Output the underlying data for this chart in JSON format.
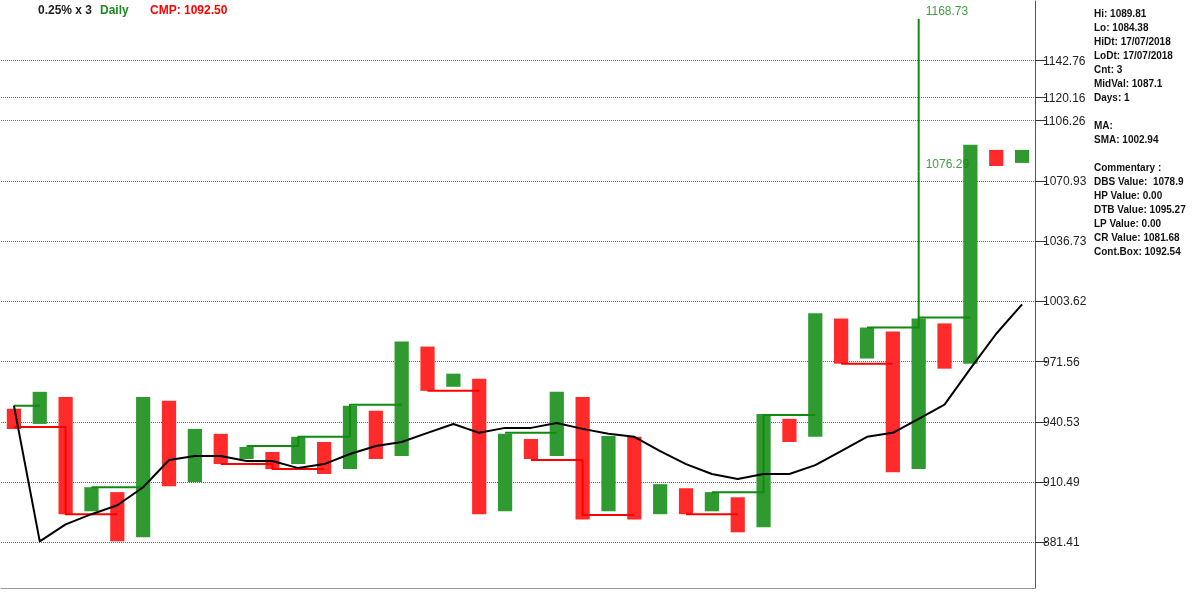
{
  "chart_data": {
    "type": "bar",
    "title": "0.25% x 3",
    "subtitle": "Daily",
    "marker": "none",
    "log": true,
    "grid": "y",
    "categories": [
      null,
      null,
      null,
      null,
      null,
      null,
      null,
      null,
      null,
      null,
      null,
      null,
      null,
      null,
      null,
      null,
      null,
      null,
      null,
      null,
      null,
      null,
      null,
      null,
      null,
      null,
      null,
      null,
      null,
      null,
      null,
      null,
      null,
      null,
      null,
      null,
      null,
      null,
      null,
      null
    ],
    "series": [
      {
        "base": [
          937.0,
          939.5,
          894.9,
          896.3,
          881.9,
          883.8,
          908.5,
          910.5,
          919.4,
          921.9,
          916.9,
          919.4,
          914.5,
          916.9,
          921.9,
          923.4,
          956.4,
          958.5,
          894.9,
          896.3,
          921.9,
          923.4,
          892.4,
          896.3,
          892.4,
          894.9,
          894.9,
          896.3,
          886.2,
          888.6,
          930.4,
          933.0,
          970.5,
          973.2,
          915.4,
          916.9,
          967.9,
          970.5,
          1079.6,
          1081.4
        ],
        "values": [
          10.2,
          16.4,
          58.4,
          11.7,
          23.7,
          69.5,
          42.8,
          26.5,
          15.1,
          6.0,
          8.5,
          13.6,
          15.9,
          31.9,
          24.3,
          58.8,
          23.1,
          6.8,
          67.8,
          38.2,
          10.0,
          32.5,
          60.9,
          37.1,
          40.6,
          14.6,
          12.6,
          9.3,
          16.9,
          56.0,
          11.7,
          64.2,
          23.9,
          16.4,
          72.1,
          77.5,
          23.9,
          121.5,
          9.4,
          7.6
        ],
        "colors": [
          "#ff2a2a",
          "#2f9a2f",
          "#ff2a2a",
          "#2f9a2f",
          "#ff2a2a",
          "#2f9a2f",
          "#ff2a2a",
          "#2f9a2f",
          "#ff2a2a",
          "#2f9a2f",
          "#ff2a2a",
          "#2f9a2f",
          "#ff2a2a",
          "#2f9a2f",
          "#ff2a2a",
          "#2f9a2f",
          "#ff2a2a",
          "#2f9a2f",
          "#ff2a2a",
          "#2f9a2f",
          "#ff2a2a",
          "#2f9a2f",
          "#ff2a2a",
          "#2f9a2f",
          "#ff2a2a",
          "#2f9a2f",
          "#ff2a2a",
          "#2f9a2f",
          "#ff2a2a",
          "#2f9a2f",
          "#ff2a2a",
          "#2f9a2f",
          "#ff2a2a",
          "#2f9a2f",
          "#ff2a2a",
          "#2f9a2f",
          "#ff2a2a",
          "#2f9a2f",
          "#ff2a2a",
          "#2f9a2f"
        ]
      },
      {
        "color": "#118a11",
        "base": [
          null,
          null,
          null,
          null,
          null,
          null,
          null,
          null,
          null,
          null,
          null,
          null,
          null,
          null,
          null,
          null,
          null,
          null,
          null,
          null,
          null,
          null,
          null,
          null,
          null,
          null,
          null,
          null,
          null,
          null,
          null,
          null,
          null,
          null,
          null,
          995.0,
          null,
          null,
          null,
          null
        ],
        "values": [
          null,
          null,
          null,
          null,
          null,
          null,
          null,
          null,
          null,
          null,
          null,
          null,
          null,
          null,
          null,
          null,
          null,
          null,
          null,
          null,
          null,
          null,
          null,
          null,
          null,
          null,
          null,
          null,
          null,
          null,
          null,
          null,
          null,
          null,
          null,
          81.29,
          null,
          null,
          null,
          null
        ]
      },
      {
        "color": "#118a11",
        "base": [
          null,
          null,
          null,
          null,
          null,
          null,
          null,
          null,
          null,
          null,
          null,
          null,
          null,
          null,
          null,
          null,
          null,
          null,
          null,
          null,
          null,
          null,
          null,
          null,
          null,
          null,
          null,
          null,
          null,
          null,
          null,
          null,
          null,
          null,
          null,
          1076.29,
          null,
          null,
          null,
          null
        ],
        "values": [
          null,
          null,
          null,
          null,
          null,
          null,
          null,
          null,
          null,
          null,
          null,
          null,
          null,
          null,
          null,
          null,
          null,
          null,
          null,
          null,
          null,
          null,
          null,
          null,
          null,
          null,
          null,
          null,
          null,
          null,
          null,
          null,
          null,
          null,
          null,
          92.44,
          null,
          null,
          null,
          null
        ]
      },
      {
        "type": "step",
        "color": "#118a11",
        "values": [
          948.8,
          948.8,
          null,
          908.0,
          908.0,
          908.0,
          null,
          null,
          null,
          928.4,
          928.4,
          933.0,
          933.0,
          949.3,
          949.3,
          949.3,
          null,
          null,
          null,
          935.0,
          935.0,
          935.0,
          null,
          null,
          null,
          null,
          null,
          905.6,
          905.6,
          944.0,
          944.0,
          944.0,
          null,
          989.6,
          989.6,
          995.0,
          995.0,
          995.0,
          null,
          null
        ]
      },
      {
        "type": "step",
        "color": "#ff0000",
        "values": [
          937.9,
          937.9,
          894.9,
          894.9,
          894.9,
          null,
          null,
          null,
          919.4,
          919.4,
          916.9,
          916.9,
          916.9,
          null,
          null,
          null,
          956.4,
          956.4,
          956.4,
          null,
          921.4,
          921.4,
          894.5,
          894.5,
          894.5,
          null,
          894.9,
          894.9,
          894.9,
          null,
          null,
          null,
          970.5,
          970.5,
          970.5,
          null,
          null,
          null,
          null,
          null
        ]
      },
      {
        "type": "line",
        "color": "#000000",
        "values": [
          948.8,
          881.9,
          890.0,
          894.9,
          899.2,
          908.0,
          921.4,
          923.4,
          923.4,
          920.9,
          920.9,
          917.4,
          919.4,
          924.4,
          928.4,
          930.4,
          935.0,
          939.5,
          935.0,
          937.5,
          937.5,
          940.0,
          937.0,
          934.5,
          933.0,
          925.8,
          919.4,
          914.5,
          912.0,
          914.5,
          914.5,
          918.9,
          925.8,
          933.0,
          935.0,
          942.1,
          949.3,
          967.9,
          986.3,
          1002.0
        ]
      }
    ],
    "ylim": [
      860,
      1180
    ],
    "yticks": [
      881.41,
      910.49,
      940.53,
      971.56,
      1003.62,
      1036.73,
      1070.93,
      1106.26,
      1120.16,
      1142.76
    ],
    "annotations": [
      "CMP: 1092.50",
      "1168.73",
      "1076.29",
      "Hi: 1089.81",
      "Lo: 1084.38",
      "HiDt: 17/07/2018",
      "LoDt: 17/07/2018",
      "Cnt: 3",
      "MidVal: 1087.1",
      "Days: 1",
      "MA:",
      "SMA: 1002.94",
      "Commentary :",
      "DBS Value:  1078.9",
      "HP Value: 0.00",
      "DTB Value: 1095.27",
      "LP Value: 0.00",
      "CR Value: 1081.68",
      "Cont.Box: 1092.54"
    ]
  }
}
